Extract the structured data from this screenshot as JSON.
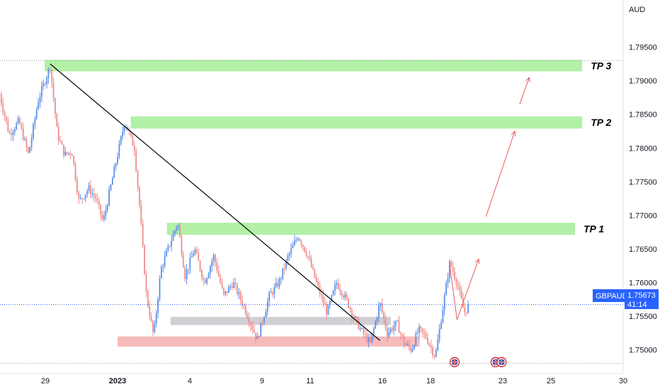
{
  "chart_data": {
    "type": "candlestick",
    "symbol": "GBPAUD",
    "currency": "AUD",
    "last_price": "1.75673",
    "countdown": "41:14",
    "ylim": [
      1.7465,
      1.802
    ],
    "y_ticks": [
      "1.75000",
      "1.75500",
      "1.76000",
      "1.76500",
      "1.77000",
      "1.77500",
      "1.78000",
      "1.78500",
      "1.79000",
      "1.79500"
    ],
    "x_ticks": [
      {
        "label": "29",
        "t": 0
      },
      {
        "label": "2023",
        "t": 3
      },
      {
        "label": "4",
        "t": 6
      },
      {
        "label": "9",
        "t": 9
      },
      {
        "label": "11",
        "t": 11
      },
      {
        "label": "16",
        "t": 14
      },
      {
        "label": "18",
        "t": 16
      },
      {
        "label": "23",
        "t": 19
      },
      {
        "label": "25",
        "t": 21
      },
      {
        "label": "30",
        "t": 24
      }
    ],
    "zones": [
      {
        "name": "TP 3",
        "color": "#b2f0a8",
        "y_low": 1.7914,
        "y_high": 1.7931,
        "t_start": -0.03,
        "t_end": 22.3
      },
      {
        "name": "TP 2",
        "color": "#b2f0a8",
        "y_low": 1.7829,
        "y_high": 1.7847,
        "t_start": 3.55,
        "t_end": 22.3
      },
      {
        "name": "TP 1",
        "color": "#b2f0a8",
        "y_low": 1.7671,
        "y_high": 1.7689,
        "t_start": 5.05,
        "t_end": 22.0
      },
      {
        "name": "",
        "color": "#cfcfd4",
        "y_low": 1.7537,
        "y_high": 1.7549,
        "t_start": 5.2,
        "t_end": 14.35
      },
      {
        "name": "",
        "color": "#f6bcbc",
        "y_low": 1.7505,
        "y_high": 1.752,
        "t_start": 3.0,
        "t_end": 15.55
      }
    ],
    "trendline": [
      {
        "t": 0.2,
        "y": 1.7925
      },
      {
        "t": 13.9,
        "y": 1.7514
      }
    ],
    "price_path": [
      {
        "t": -1.9,
        "y": 1.788
      },
      {
        "t": -1.5,
        "y": 1.782
      },
      {
        "t": -1.1,
        "y": 1.784
      },
      {
        "t": -0.7,
        "y": 1.779
      },
      {
        "t": -0.3,
        "y": 1.787
      },
      {
        "t": 0.2,
        "y": 1.7922
      },
      {
        "t": 0.5,
        "y": 1.782
      },
      {
        "t": 0.8,
        "y": 1.779
      },
      {
        "t": 1.1,
        "y": 1.7795
      },
      {
        "t": 1.4,
        "y": 1.772
      },
      {
        "t": 1.8,
        "y": 1.774
      },
      {
        "t": 2.1,
        "y": 1.7725
      },
      {
        "t": 2.4,
        "y": 1.769
      },
      {
        "t": 2.7,
        "y": 1.774
      },
      {
        "t": 3.0,
        "y": 1.779
      },
      {
        "t": 3.3,
        "y": 1.784
      },
      {
        "t": 3.7,
        "y": 1.78
      },
      {
        "t": 3.9,
        "y": 1.772
      },
      {
        "t": 4.2,
        "y": 1.758
      },
      {
        "t": 4.5,
        "y": 1.752
      },
      {
        "t": 4.8,
        "y": 1.762
      },
      {
        "t": 5.2,
        "y": 1.766
      },
      {
        "t": 5.5,
        "y": 1.769
      },
      {
        "t": 5.8,
        "y": 1.761
      },
      {
        "t": 6.2,
        "y": 1.765
      },
      {
        "t": 6.6,
        "y": 1.76
      },
      {
        "t": 7.0,
        "y": 1.764
      },
      {
        "t": 7.4,
        "y": 1.758
      },
      {
        "t": 7.8,
        "y": 1.76
      },
      {
        "t": 8.3,
        "y": 1.756
      },
      {
        "t": 8.8,
        "y": 1.7515
      },
      {
        "t": 9.3,
        "y": 1.758
      },
      {
        "t": 9.7,
        "y": 1.76
      },
      {
        "t": 10.1,
        "y": 1.764
      },
      {
        "t": 10.5,
        "y": 1.767
      },
      {
        "t": 10.9,
        "y": 1.764
      },
      {
        "t": 11.3,
        "y": 1.7595
      },
      {
        "t": 11.7,
        "y": 1.7555
      },
      {
        "t": 12.1,
        "y": 1.76
      },
      {
        "t": 12.5,
        "y": 1.7575
      },
      {
        "t": 12.8,
        "y": 1.755
      },
      {
        "t": 13.1,
        "y": 1.753
      },
      {
        "t": 13.5,
        "y": 1.751
      },
      {
        "t": 13.9,
        "y": 1.757
      },
      {
        "t": 14.2,
        "y": 1.7525
      },
      {
        "t": 14.6,
        "y": 1.754
      },
      {
        "t": 14.9,
        "y": 1.751
      },
      {
        "t": 15.2,
        "y": 1.75
      },
      {
        "t": 15.5,
        "y": 1.753
      },
      {
        "t": 15.8,
        "y": 1.752
      },
      {
        "t": 16.2,
        "y": 1.749
      },
      {
        "t": 16.5,
        "y": 1.756
      },
      {
        "t": 16.8,
        "y": 1.763
      },
      {
        "t": 17.1,
        "y": 1.76
      },
      {
        "t": 17.4,
        "y": 1.7555
      },
      {
        "t": 17.6,
        "y": 1.7567
      }
    ],
    "arrows": [
      {
        "t1": 17.1,
        "y1": 1.7545,
        "t2": 18.0,
        "y2": 1.7635
      },
      {
        "t1": 18.3,
        "y1": 1.7698,
        "t2": 19.5,
        "y2": 1.7825
      },
      {
        "t1": 19.7,
        "y1": 1.7865,
        "t2": 20.1,
        "y2": 1.7905
      }
    ],
    "event_markers": [
      {
        "t": 17.0
      },
      {
        "t": 18.7
      },
      {
        "t": 18.95
      }
    ]
  },
  "colors": {
    "up": "#5d8fe8",
    "down": "#ef8c8c",
    "trendline": "#000000",
    "arrow": "#e85a5a",
    "price_tag": "#2962ff",
    "grid_dots": "#9598a1"
  }
}
